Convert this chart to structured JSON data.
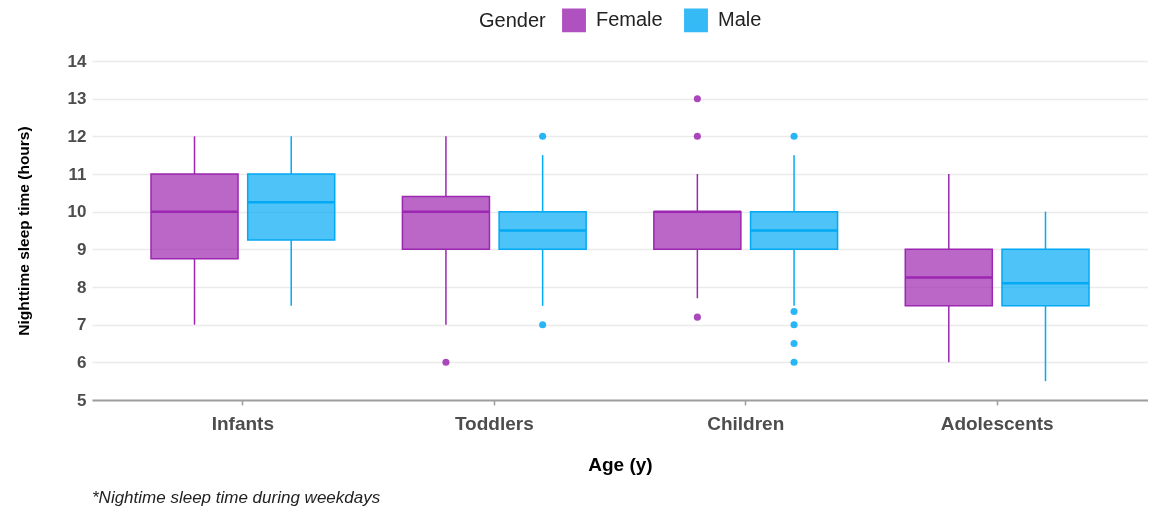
{
  "chart_data": {
    "type": "box",
    "categories": [
      "Infants",
      "Toddlers",
      "Children",
      "Adolescents"
    ],
    "xlabel": "Age (y)",
    "ylabel": "Nighttime sleep time (hours)",
    "legend_title": "Gender",
    "legend": "top",
    "ylim": [
      5,
      14
    ],
    "yticks": [
      5,
      6,
      7,
      8,
      9,
      10,
      11,
      12,
      13,
      14
    ],
    "grid": "y",
    "annotations": [
      "*Nightime sleep time during weekdays"
    ],
    "series": [
      {
        "name": "Female",
        "color": "#9c27b0",
        "boxes": [
          {
            "low": 7,
            "q1": 8.75,
            "median": 10,
            "q3": 11,
            "high": 12
          },
          {
            "low": 7,
            "q1": 9,
            "median": 10,
            "q3": 10.4,
            "high": 12,
            "outliers": [
              6
            ]
          },
          {
            "low": 7.7,
            "q1": 9,
            "median": 10,
            "q3": 10,
            "high": 11,
            "outliers": [
              7.2,
              12,
              13
            ]
          },
          {
            "low": 6,
            "q1": 7.5,
            "median": 8.25,
            "q3": 9,
            "high": 11
          }
        ]
      },
      {
        "name": "Male",
        "color": "#03a9f4",
        "boxes": [
          {
            "low": 7.5,
            "q1": 9.25,
            "median": 10.25,
            "q3": 11,
            "high": 12
          },
          {
            "low": 7.5,
            "q1": 9,
            "median": 9.5,
            "q3": 10,
            "high": 11.5,
            "outliers": [
              7,
              12
            ]
          },
          {
            "low": 7.5,
            "q1": 9,
            "median": 9.5,
            "q3": 10,
            "high": 11.5,
            "outliers": [
              7.35,
              7,
              6.5,
              6,
              12
            ]
          },
          {
            "low": 5.5,
            "q1": 7.5,
            "median": 8.1,
            "q3": 9,
            "high": 10
          }
        ]
      }
    ]
  }
}
